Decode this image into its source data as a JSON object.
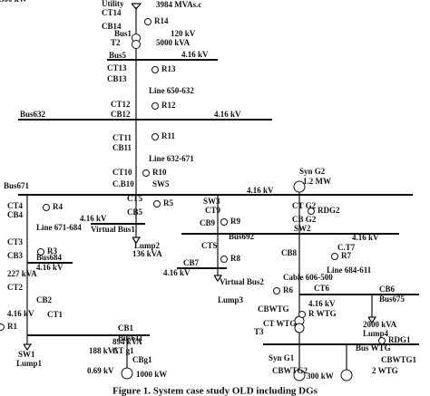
{
  "labels": [
    "Utility",
    "3984 MVAs.c",
    "CT14",
    "R14",
    "CB14",
    "Bus1",
    "120 kV",
    "T2",
    "5000 kVA",
    "Bus5",
    "4.16 kV",
    "CT13",
    "R13",
    "CB13",
    "Line 650-632",
    "CT12",
    "R12",
    "Bus632",
    "CB12",
    "4.16 kV",
    "CT11",
    "R11",
    "CB11",
    "Line 632-671",
    "CT10",
    "R10",
    "C.B10",
    "SW5",
    "Bus671",
    "Syn G2",
    "1.2 MW",
    "4.16 kV",
    "CT4",
    "R4",
    "CB4",
    "CT5",
    "R5",
    "CB5",
    "SW3",
    "CT9",
    "R9",
    "CT G2",
    "RDG2",
    "Line 671-684",
    "4.16 kV",
    "Virtual Bus1",
    "CB9",
    "CB G2",
    "SW2",
    "Bus692",
    "4.16 kV",
    "CT3",
    "R3",
    "CB3",
    "Bus684",
    "4.16 kV",
    "Lump2",
    "136 kVA",
    "CTS",
    "R8",
    "CB8",
    "C.T7",
    "R7",
    "CB7",
    "4.16 kV",
    "Virtual Bus2",
    "Lump3",
    "227 kVA",
    "CT2",
    "CB2",
    "Line 684-611",
    "Cable 606-500",
    "CT6",
    "R6",
    "CB6",
    "Bus675",
    "4.16 kV",
    "CT1",
    "R1",
    "CB1",
    "Bus611",
    "4.16 kV",
    "CBWTG",
    "R WTG",
    "CT WTG",
    "T3",
    "2000 kVA",
    "Lump4",
    "894 kVA",
    "SW1",
    "Lump1",
    "188 kVA",
    "CT g1",
    "CBg1",
    "RDG1",
    "Bus WTG",
    "0.69 kV",
    "1000 kW",
    "Syn G1",
    "CBWTG1",
    "CBWTG2",
    "300 kW",
    "2 WTG",
    "300 kW"
  ],
  "caption": "Figure 1. System case study OLD including DGs"
}
